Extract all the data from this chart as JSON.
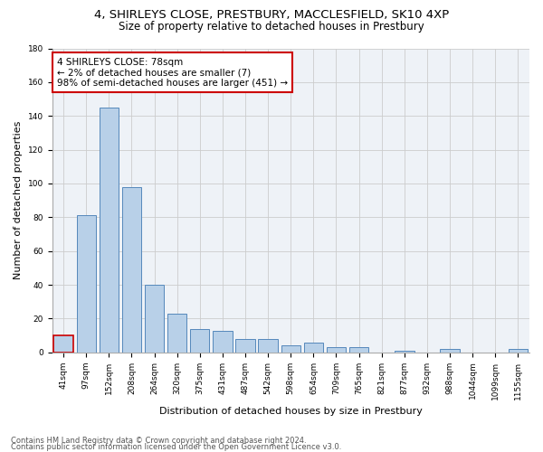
{
  "title_line1": "4, SHIRLEYS CLOSE, PRESTBURY, MACCLESFIELD, SK10 4XP",
  "title_line2": "Size of property relative to detached houses in Prestbury",
  "xlabel": "Distribution of detached houses by size in Prestbury",
  "ylabel": "Number of detached properties",
  "categories": [
    "41sqm",
    "97sqm",
    "152sqm",
    "208sqm",
    "264sqm",
    "320sqm",
    "375sqm",
    "431sqm",
    "487sqm",
    "542sqm",
    "598sqm",
    "654sqm",
    "709sqm",
    "765sqm",
    "821sqm",
    "877sqm",
    "932sqm",
    "988sqm",
    "1044sqm",
    "1099sqm",
    "1155sqm"
  ],
  "values": [
    10,
    81,
    145,
    98,
    40,
    23,
    14,
    13,
    8,
    8,
    4,
    6,
    3,
    3,
    0,
    1,
    0,
    2,
    0,
    0,
    2
  ],
  "bar_color": "#b8d0e8",
  "bar_edge_color": "#5588bb",
  "highlight_bar_index": 0,
  "highlight_bar_edge_color": "#cc0000",
  "annotation_text": "4 SHIRLEYS CLOSE: 78sqm\n← 2% of detached houses are smaller (7)\n98% of semi-detached houses are larger (451) →",
  "annotation_box_color": "#ffffff",
  "annotation_box_edge_color": "#cc0000",
  "ylim": [
    0,
    180
  ],
  "yticks": [
    0,
    20,
    40,
    60,
    80,
    100,
    120,
    140,
    160,
    180
  ],
  "grid_color": "#cccccc",
  "background_color": "#eef2f7",
  "footer_line1": "Contains HM Land Registry data © Crown copyright and database right 2024.",
  "footer_line2": "Contains public sector information licensed under the Open Government Licence v3.0.",
  "title_fontsize": 9.5,
  "subtitle_fontsize": 8.5,
  "axis_label_fontsize": 8,
  "tick_fontsize": 6.5,
  "annotation_fontsize": 7.5,
  "footer_fontsize": 6
}
